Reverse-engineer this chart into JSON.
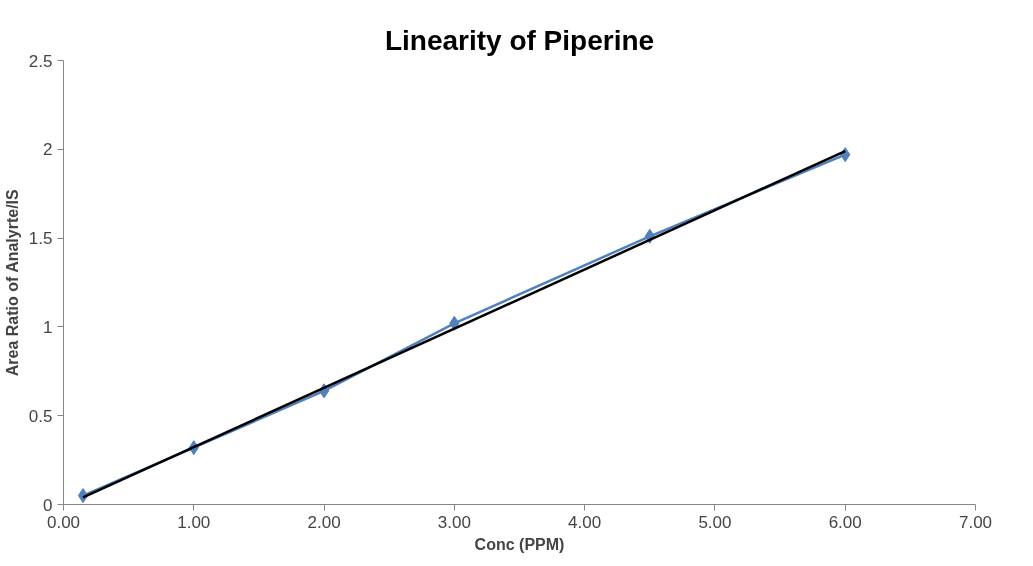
{
  "chart_data": {
    "type": "line",
    "title": "Linearity of Piperine",
    "xlabel": "Conc (PPM)",
    "ylabel": "Area Ratio of Analyrte/IS",
    "series": [
      {
        "color": "#4f81bd",
        "marker": "diamond",
        "x": [
          0.15,
          1,
          2,
          3,
          4.5,
          6
        ],
        "values": [
          0.05,
          0.32,
          0.64,
          1.02,
          1.51,
          1.97
        ]
      },
      {
        "color": "#000000",
        "marker": "none",
        "x": [
          0.15,
          6
        ],
        "values": [
          0.04,
          1.99
        ]
      }
    ],
    "xlim": [
      0,
      7
    ],
    "xticks": [
      {
        "value": 0,
        "label": "0.00"
      },
      {
        "value": 1,
        "label": "1.00"
      },
      {
        "value": 2,
        "label": "2.00"
      },
      {
        "value": 3,
        "label": "3.00"
      },
      {
        "value": 4,
        "label": "4.00"
      },
      {
        "value": 5,
        "label": "5.00"
      },
      {
        "value": 6,
        "label": "6.00"
      },
      {
        "value": 7,
        "label": "7.00"
      }
    ],
    "ylim": [
      0,
      2.5
    ],
    "yticks": [
      0,
      0.5,
      1,
      1.5,
      2,
      2.5
    ],
    "grid": false,
    "line_style": "solid"
  }
}
